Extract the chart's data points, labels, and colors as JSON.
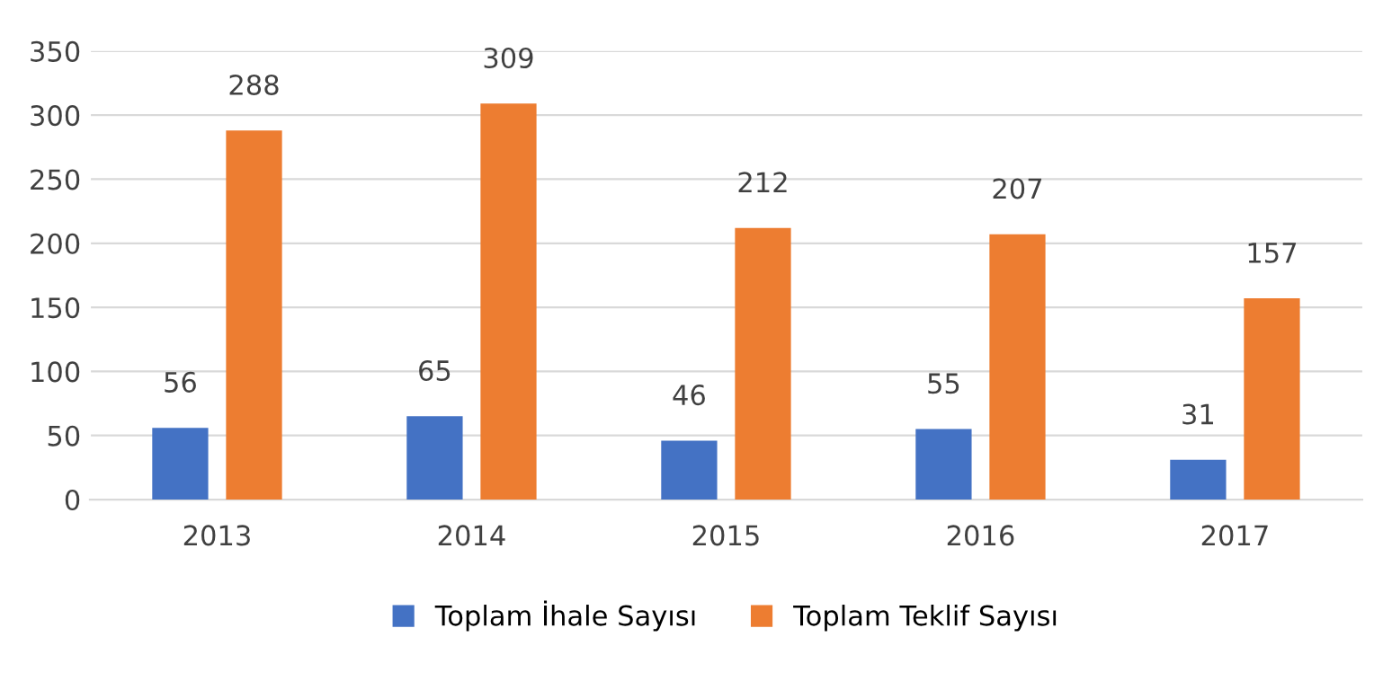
{
  "chart_data": {
    "type": "bar",
    "categories": [
      "2013",
      "2014",
      "2015",
      "2016",
      "2017"
    ],
    "series": [
      {
        "name": "Toplam İhale Sayısı",
        "color": "#4472c4",
        "values": [
          56,
          65,
          46,
          55,
          31
        ]
      },
      {
        "name": "Toplam Teklif Sayısı",
        "color": "#ed7d31",
        "values": [
          288,
          309,
          212,
          207,
          157
        ]
      }
    ],
    "ylim": [
      0,
      350
    ],
    "yticks": [
      0,
      50,
      100,
      150,
      200,
      250,
      300,
      350
    ],
    "grid": "y",
    "legend": "bottom",
    "data_labels": true
  }
}
